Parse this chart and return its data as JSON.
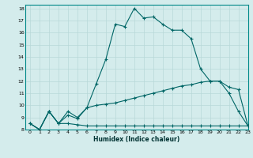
{
  "xlabel": "Humidex (Indice chaleur)",
  "ylabel": "",
  "bg_color": "#d4ecec",
  "grid_color": "#b8d8d8",
  "line_color": "#006666",
  "xlim": [
    -0.5,
    23
  ],
  "ylim": [
    8,
    18.3
  ],
  "xticks": [
    0,
    1,
    2,
    3,
    4,
    5,
    6,
    7,
    8,
    9,
    10,
    11,
    12,
    13,
    14,
    15,
    16,
    17,
    18,
    19,
    20,
    21,
    22,
    23
  ],
  "yticks": [
    8,
    9,
    10,
    11,
    12,
    13,
    14,
    15,
    16,
    17,
    18
  ],
  "line1_x": [
    0,
    1,
    2,
    3,
    4,
    5,
    6,
    7,
    8,
    9,
    10,
    11,
    12,
    13,
    14,
    15,
    16,
    17,
    18,
    19,
    20,
    21,
    22,
    23
  ],
  "line1_y": [
    8.5,
    8.0,
    9.5,
    8.5,
    9.5,
    9.0,
    9.8,
    11.8,
    13.8,
    16.7,
    16.5,
    18.0,
    17.2,
    17.3,
    16.7,
    16.2,
    16.2,
    15.5,
    13.0,
    12.0,
    12.0,
    11.0,
    9.5,
    8.3
  ],
  "line2_x": [
    0,
    1,
    2,
    3,
    4,
    5,
    6,
    7,
    8,
    9,
    10,
    11,
    12,
    13,
    14,
    15,
    16,
    17,
    18,
    19,
    20,
    21,
    22,
    23
  ],
  "line2_y": [
    8.5,
    8.0,
    9.5,
    8.5,
    9.2,
    8.9,
    9.8,
    10.0,
    10.1,
    10.2,
    10.4,
    10.6,
    10.8,
    11.0,
    11.2,
    11.4,
    11.6,
    11.7,
    11.9,
    12.0,
    12.0,
    11.5,
    11.3,
    8.3
  ],
  "line3_x": [
    0,
    1,
    2,
    3,
    4,
    5,
    6,
    7,
    8,
    9,
    10,
    11,
    12,
    13,
    14,
    15,
    16,
    17,
    18,
    19,
    20,
    21,
    22,
    23
  ],
  "line3_y": [
    8.5,
    8.0,
    9.5,
    8.5,
    8.5,
    8.4,
    8.3,
    8.3,
    8.3,
    8.3,
    8.3,
    8.3,
    8.3,
    8.3,
    8.3,
    8.3,
    8.3,
    8.3,
    8.3,
    8.3,
    8.3,
    8.3,
    8.3,
    8.3
  ]
}
